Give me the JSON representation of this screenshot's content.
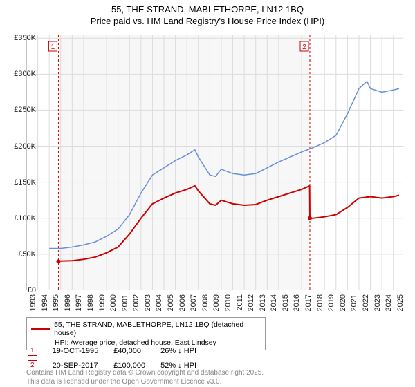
{
  "title_line1": "55, THE STRAND, MABLETHORPE, LN12 1BQ",
  "title_line2": "Price paid vs. HM Land Registry's House Price Index (HPI)",
  "chart": {
    "type": "line",
    "background_color": "#ffffff",
    "plot_band_color": "#f7f7f7",
    "grid_color": "#dcdcdc",
    "axis_color": "#888888",
    "label_fontsize": 11,
    "x": {
      "min": 1993,
      "max": 2025.8,
      "ticks": [
        1993,
        1994,
        1995,
        1996,
        1997,
        1998,
        1999,
        2000,
        2001,
        2002,
        2003,
        2004,
        2005,
        2006,
        2007,
        2008,
        2009,
        2010,
        2011,
        2012,
        2013,
        2014,
        2015,
        2016,
        2017,
        2018,
        2019,
        2020,
        2021,
        2022,
        2023,
        2024,
        2025
      ],
      "band_start": 1995.8,
      "band_end": 2017.72
    },
    "y": {
      "min": 0,
      "max": 355000,
      "ticks": [
        0,
        50000,
        100000,
        150000,
        200000,
        250000,
        300000,
        350000
      ],
      "tick_labels": [
        "£0",
        "£50K",
        "£100K",
        "£150K",
        "£200K",
        "£250K",
        "£300K",
        "£350K"
      ]
    },
    "series": [
      {
        "name": "price_paid",
        "label": "55, THE STRAND, MABLETHORPE, LN12 1BQ (detached house)",
        "color": "#cc0000",
        "width": 2,
        "data": [
          [
            1995.8,
            40000
          ],
          [
            1996,
            40500
          ],
          [
            1997,
            41000
          ],
          [
            1998,
            43000
          ],
          [
            1999,
            46000
          ],
          [
            2000,
            52000
          ],
          [
            2001,
            60000
          ],
          [
            2002,
            78000
          ],
          [
            2003,
            100000
          ],
          [
            2004,
            120000
          ],
          [
            2005,
            128000
          ],
          [
            2006,
            135000
          ],
          [
            2007,
            140000
          ],
          [
            2007.7,
            145000
          ],
          [
            2008,
            138000
          ],
          [
            2009,
            120000
          ],
          [
            2009.5,
            118000
          ],
          [
            2010,
            125000
          ],
          [
            2011,
            120000
          ],
          [
            2012,
            118000
          ],
          [
            2013,
            119000
          ],
          [
            2014,
            125000
          ],
          [
            2015,
            130000
          ],
          [
            2016,
            135000
          ],
          [
            2017,
            140000
          ],
          [
            2017.7,
            145000
          ],
          [
            2017.72,
            100000
          ],
          [
            2018,
            100000
          ],
          [
            2019,
            102000
          ],
          [
            2020,
            105000
          ],
          [
            2021,
            115000
          ],
          [
            2022,
            128000
          ],
          [
            2023,
            130000
          ],
          [
            2024,
            128000
          ],
          [
            2025,
            130000
          ],
          [
            2025.5,
            132000
          ]
        ]
      },
      {
        "name": "hpi",
        "label": "HPI: Average price, detached house, East Lindsey",
        "color": "#6a8fd8",
        "width": 1.5,
        "data": [
          [
            1995,
            58000
          ],
          [
            1996,
            58000
          ],
          [
            1997,
            60000
          ],
          [
            1998,
            63000
          ],
          [
            1999,
            67000
          ],
          [
            2000,
            75000
          ],
          [
            2001,
            85000
          ],
          [
            2002,
            105000
          ],
          [
            2003,
            135000
          ],
          [
            2004,
            160000
          ],
          [
            2005,
            170000
          ],
          [
            2006,
            180000
          ],
          [
            2007,
            188000
          ],
          [
            2007.7,
            195000
          ],
          [
            2008,
            185000
          ],
          [
            2009,
            160000
          ],
          [
            2009.5,
            158000
          ],
          [
            2010,
            168000
          ],
          [
            2011,
            162000
          ],
          [
            2012,
            160000
          ],
          [
            2013,
            162000
          ],
          [
            2014,
            170000
          ],
          [
            2015,
            178000
          ],
          [
            2016,
            185000
          ],
          [
            2017,
            192000
          ],
          [
            2018,
            198000
          ],
          [
            2019,
            205000
          ],
          [
            2020,
            215000
          ],
          [
            2021,
            245000
          ],
          [
            2022,
            280000
          ],
          [
            2022.7,
            290000
          ],
          [
            2023,
            280000
          ],
          [
            2024,
            275000
          ],
          [
            2025,
            278000
          ],
          [
            2025.5,
            280000
          ]
        ]
      }
    ],
    "markers": [
      {
        "id": "1",
        "x": 1995.8,
        "y": 40000,
        "line_color": "#cc0000",
        "dash": "3,3"
      },
      {
        "id": "2",
        "x": 2017.72,
        "y": 100000,
        "line_color": "#cc0000",
        "dash": "3,3"
      }
    ],
    "marker_point_color": "#cc0000",
    "marker_point_radius": 3
  },
  "marker_rows": [
    {
      "id": "1",
      "date": "19-OCT-1995",
      "price": "£40,000",
      "delta": "26% ↓ HPI"
    },
    {
      "id": "2",
      "date": "20-SEP-2017",
      "price": "£100,000",
      "delta": "52% ↓ HPI"
    }
  ],
  "footer_line1": "Contains HM Land Registry data © Crown copyright and database right 2025.",
  "footer_line2": "This data is licensed under the Open Government Licence v3.0."
}
